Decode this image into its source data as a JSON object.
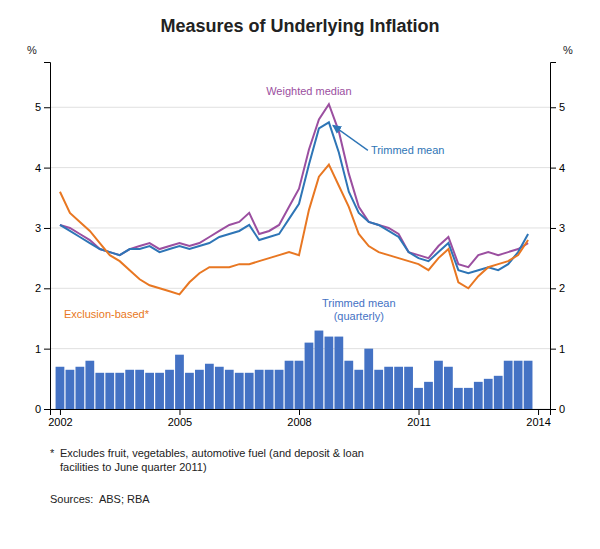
{
  "chart_data": {
    "type": "line",
    "title": "Measures of Underlying Inflation",
    "y_label": "%",
    "y2_label": "%",
    "x": [
      2002.0,
      2002.25,
      2002.5,
      2002.75,
      2003.0,
      2003.25,
      2003.5,
      2003.75,
      2004.0,
      2004.25,
      2004.5,
      2004.75,
      2005.0,
      2005.25,
      2005.5,
      2005.75,
      2006.0,
      2006.25,
      2006.5,
      2006.75,
      2007.0,
      2007.25,
      2007.5,
      2007.75,
      2008.0,
      2008.25,
      2008.5,
      2008.75,
      2009.0,
      2009.25,
      2009.5,
      2009.75,
      2010.0,
      2010.25,
      2010.5,
      2010.75,
      2011.0,
      2011.25,
      2011.5,
      2011.75,
      2012.0,
      2012.25,
      2012.5,
      2012.75,
      2013.0,
      2013.25,
      2013.5,
      2013.75
    ],
    "xlim": [
      2001.75,
      2014.3
    ],
    "xticks": [
      2002,
      2005,
      2008,
      2011,
      2014
    ],
    "ylim": [
      0,
      5.75
    ],
    "yticks": [
      0,
      1,
      2,
      3,
      4,
      5
    ],
    "y2lim": [
      0,
      5.75
    ],
    "y2ticks": [
      0,
      1,
      2,
      3,
      4,
      5
    ],
    "grid": true,
    "series": [
      {
        "name": "Trimmed mean\n(quarterly)",
        "type": "bar",
        "color": "#4472C4",
        "values": [
          0.7,
          0.65,
          0.7,
          0.8,
          0.6,
          0.6,
          0.6,
          0.65,
          0.65,
          0.6,
          0.6,
          0.65,
          0.9,
          0.6,
          0.65,
          0.75,
          0.7,
          0.65,
          0.6,
          0.6,
          0.65,
          0.65,
          0.65,
          0.8,
          0.8,
          1.1,
          1.3,
          1.2,
          1.2,
          0.8,
          0.65,
          1.0,
          0.65,
          0.7,
          0.7,
          0.7,
          0.35,
          0.45,
          0.8,
          0.7,
          0.35,
          0.35,
          0.45,
          0.5,
          0.55,
          0.8,
          0.8,
          0.8
        ]
      },
      {
        "name": "Weighted median",
        "type": "line",
        "color": "#9B4FA0",
        "values": [
          3.05,
          3.0,
          2.9,
          2.8,
          2.65,
          2.6,
          2.55,
          2.65,
          2.7,
          2.75,
          2.65,
          2.7,
          2.75,
          2.7,
          2.75,
          2.85,
          2.95,
          3.05,
          3.1,
          3.25,
          2.9,
          2.95,
          3.05,
          3.35,
          3.65,
          4.3,
          4.8,
          5.05,
          4.6,
          3.9,
          3.35,
          3.1,
          3.05,
          3.0,
          2.9,
          2.6,
          2.55,
          2.5,
          2.7,
          2.85,
          2.4,
          2.35,
          2.55,
          2.6,
          2.55,
          2.6,
          2.65,
          2.75
        ]
      },
      {
        "name": "Trimmed mean",
        "type": "line",
        "color": "#2E75B6",
        "values": [
          3.05,
          2.95,
          2.85,
          2.75,
          2.65,
          2.6,
          2.55,
          2.65,
          2.65,
          2.7,
          2.6,
          2.65,
          2.7,
          2.65,
          2.7,
          2.75,
          2.85,
          2.9,
          2.95,
          3.05,
          2.8,
          2.85,
          2.9,
          3.15,
          3.4,
          4.05,
          4.65,
          4.75,
          4.25,
          3.6,
          3.25,
          3.1,
          3.05,
          2.95,
          2.85,
          2.6,
          2.5,
          2.45,
          2.6,
          2.75,
          2.3,
          2.25,
          2.3,
          2.35,
          2.3,
          2.4,
          2.6,
          2.9
        ]
      },
      {
        "name": "Exclusion-based*",
        "type": "line",
        "color": "#E87722",
        "values": [
          3.6,
          3.25,
          3.1,
          2.95,
          2.75,
          2.55,
          2.45,
          2.3,
          2.15,
          2.05,
          2.0,
          1.95,
          1.9,
          2.1,
          2.25,
          2.35,
          2.35,
          2.35,
          2.4,
          2.4,
          2.45,
          2.5,
          2.55,
          2.6,
          2.55,
          3.3,
          3.85,
          4.05,
          3.7,
          3.35,
          2.9,
          2.7,
          2.6,
          2.55,
          2.5,
          2.45,
          2.4,
          2.3,
          2.5,
          2.65,
          2.1,
          2.0,
          2.2,
          2.35,
          2.4,
          2.45,
          2.55,
          2.8
        ]
      }
    ],
    "footnotes": [
      "*",
      "Excludes fruit, vegetables, automotive fuel (and deposit & loan\nfacilities to June quarter 2011)",
      "Sources:  ABS; RBA"
    ]
  }
}
